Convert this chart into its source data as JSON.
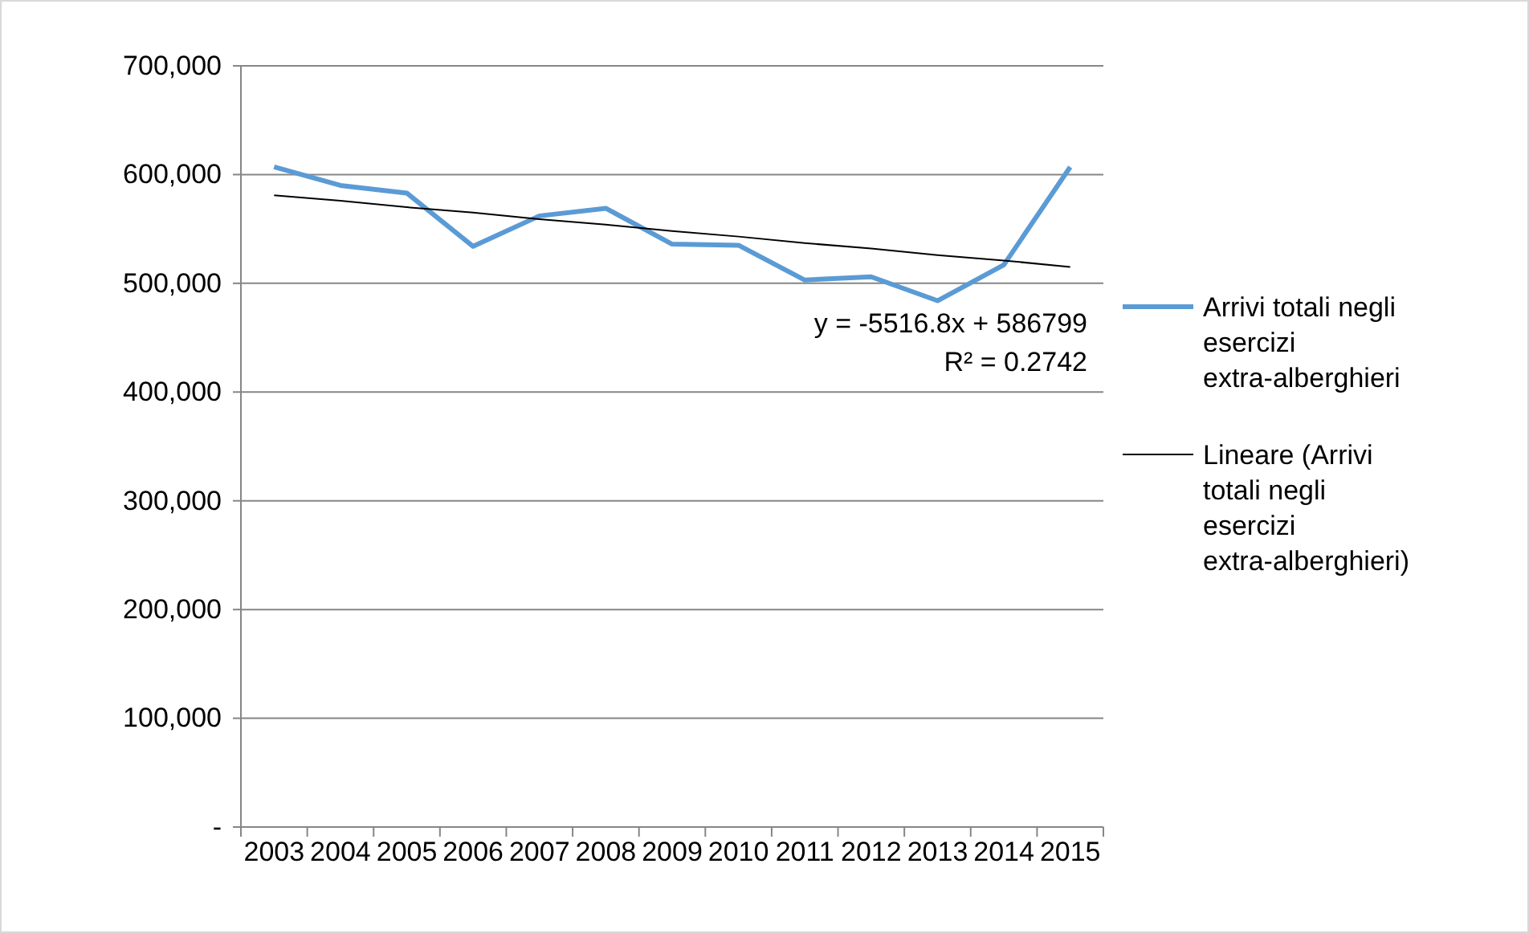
{
  "chart_data": {
    "type": "line",
    "categories": [
      "2003",
      "2004",
      "2005",
      "2006",
      "2007",
      "2008",
      "2009",
      "2010",
      "2011",
      "2012",
      "2013",
      "2014",
      "2015"
    ],
    "series": [
      {
        "name": "Arrivi totali negli esercizi extra-alberghieri",
        "color": "#5b9bd5",
        "values": [
          607000,
          590000,
          583000,
          534000,
          562000,
          569000,
          536000,
          535000,
          503000,
          506000,
          484000,
          517000,
          607000
        ]
      },
      {
        "name": "Lineare (Arrivi totali negli esercizi extra-alberghieri)",
        "color": "#000000",
        "type": "line",
        "values": [
          581000,
          576000,
          570000,
          565000,
          559000,
          554000,
          548000,
          543000,
          537000,
          532000,
          526000,
          521000,
          515000
        ]
      }
    ],
    "ylim": [
      0,
      700000
    ],
    "yticks": [
      {
        "value": 0,
        "label": "-"
      },
      {
        "value": 100000,
        "label": "100,000"
      },
      {
        "value": 200000,
        "label": "200,000"
      },
      {
        "value": 300000,
        "label": "300,000"
      },
      {
        "value": 400000,
        "label": "400,000"
      },
      {
        "value": 500000,
        "label": "500,000"
      },
      {
        "value": 600000,
        "label": "600,000"
      },
      {
        "value": 700000,
        "label": "700,000"
      }
    ],
    "grid": "y",
    "legend": "right",
    "marker": "none",
    "line_style": "solid",
    "annotations": [
      "y = -5516.8x + 586799",
      "R² = 0.2742"
    ]
  }
}
